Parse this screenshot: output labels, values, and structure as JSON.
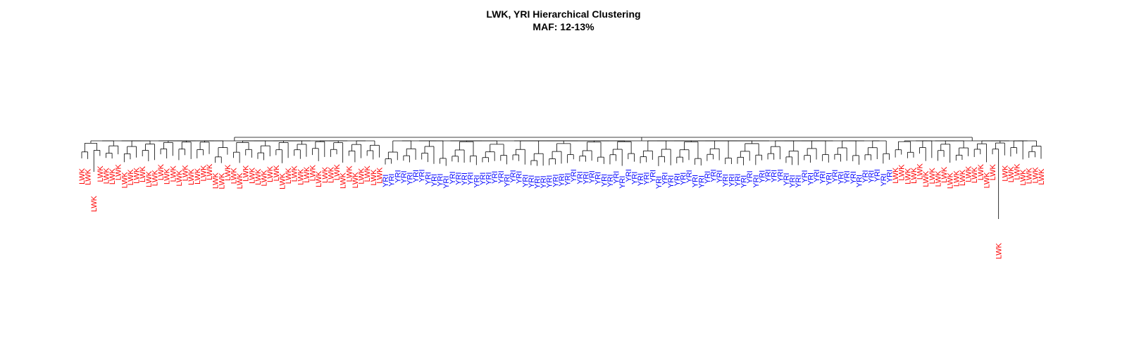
{
  "title": {
    "line1": "LWK, YRI Hierarchical Clustering",
    "line2": "MAF: 12-13%"
  },
  "populations": [
    {
      "label": "LWK",
      "color": "#ff0000"
    },
    {
      "label": "YRI",
      "color": "#0000ff"
    }
  ],
  "leaf_sequence": [
    {
      "label": "LWK",
      "count": 50
    },
    {
      "label": "YRI",
      "count": 84
    },
    {
      "label": "LWK",
      "count": 25
    }
  ],
  "outlier_leaves": [
    {
      "label": "LWK",
      "note": "long branch, left side"
    },
    {
      "label": "LWK",
      "note": "long branch, right side"
    }
  ]
}
